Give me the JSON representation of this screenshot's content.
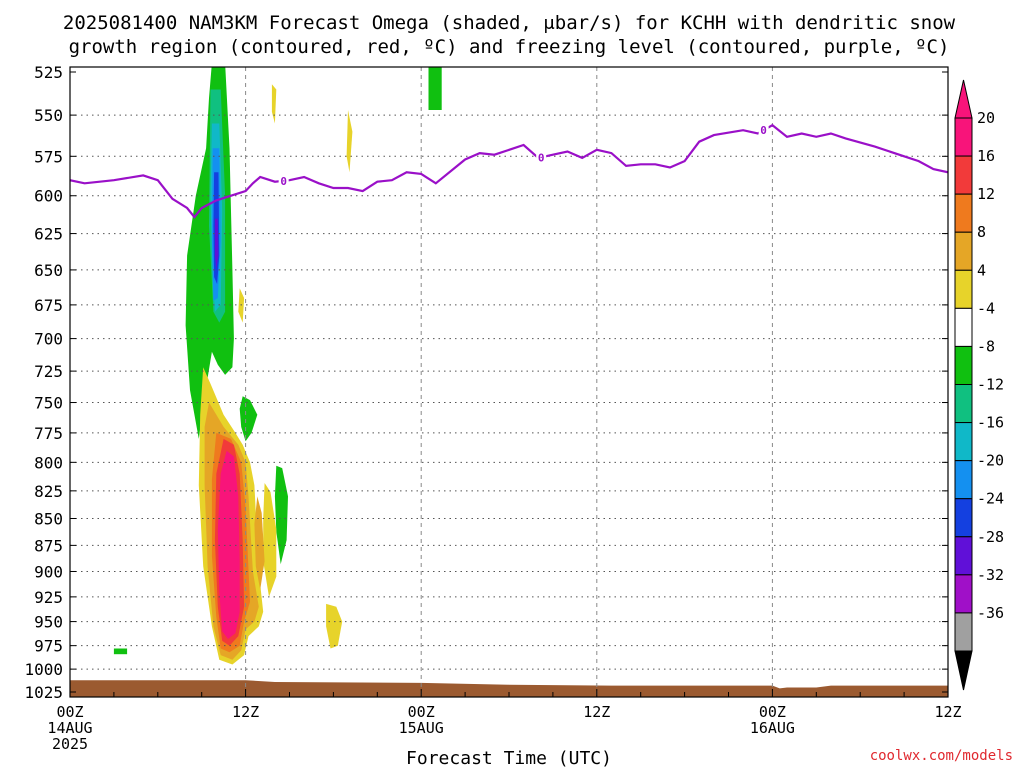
{
  "chart_data": {
    "type": "heatmap",
    "title": "2025081400 NAM3KM Forecast Omega (shaded, μbar/s) for KCHH with dendritic snow",
    "subtitle": "growth region (contoured, red, ºC) and freezing level (contoured, purple, ºC)",
    "xlabel": "Forecast Time (UTC)",
    "credit": "coolwx.com/models",
    "x_unit": "forecast hour",
    "xlim": [
      0,
      60
    ],
    "y_unit": "hPa",
    "ylim": [
      1025,
      525
    ],
    "y_ticks": [
      525,
      550,
      575,
      600,
      625,
      650,
      675,
      700,
      725,
      750,
      775,
      800,
      825,
      850,
      875,
      900,
      925,
      950,
      975,
      1000,
      1025
    ],
    "x_ticks": [
      {
        "hour": 0,
        "lines": [
          "00Z",
          "14AUG",
          "2025"
        ]
      },
      {
        "hour": 12,
        "lines": [
          "12Z"
        ]
      },
      {
        "hour": 24,
        "lines": [
          "00Z",
          "15AUG"
        ]
      },
      {
        "hour": 36,
        "lines": [
          "12Z"
        ]
      },
      {
        "hour": 48,
        "lines": [
          "00Z",
          "16AUG"
        ]
      },
      {
        "hour": 60,
        "lines": [
          "12Z"
        ]
      }
    ],
    "colorbar": {
      "tick_labels": [
        "20",
        "16",
        "12",
        "8",
        "4",
        "-4",
        "-8",
        "-12",
        "-16",
        "-20",
        "-24",
        "-28",
        "-32",
        "-36"
      ],
      "colors_top_to_bottom": [
        "#f8147a",
        "#f23a3a",
        "#ef7a1e",
        "#e5a626",
        "#e7d32a",
        "#ffffff",
        "#10c010",
        "#10c080",
        "#10b8c8",
        "#1490f0",
        "#1440e0",
        "#6010d8",
        "#a010c8",
        "#a0a0a0"
      ],
      "extend_max_color": "#f8147a",
      "extend_min_color": "#000000"
    },
    "freezing_level": {
      "color": "#9a10c8",
      "label": "0",
      "points": [
        [
          0,
          590
        ],
        [
          1,
          592
        ],
        [
          3,
          590
        ],
        [
          5,
          587
        ],
        [
          6,
          590
        ],
        [
          7,
          602
        ],
        [
          8,
          608
        ],
        [
          8.5,
          614
        ],
        [
          9,
          608
        ],
        [
          10,
          603
        ],
        [
          11,
          600
        ],
        [
          12,
          597
        ],
        [
          12.5,
          592
        ],
        [
          13,
          588
        ],
        [
          14,
          591
        ],
        [
          15,
          590
        ],
        [
          16,
          588
        ],
        [
          17,
          592
        ],
        [
          18,
          595
        ],
        [
          19,
          595
        ],
        [
          20,
          597
        ],
        [
          21,
          591
        ],
        [
          22,
          590
        ],
        [
          23,
          585
        ],
        [
          24,
          586
        ],
        [
          25,
          592
        ],
        [
          27,
          577
        ],
        [
          28,
          573
        ],
        [
          29,
          574
        ],
        [
          31,
          568
        ],
        [
          32,
          576
        ],
        [
          33,
          574
        ],
        [
          34,
          572
        ],
        [
          35,
          576
        ],
        [
          36,
          571
        ],
        [
          37,
          573
        ],
        [
          38,
          581
        ],
        [
          39,
          580
        ],
        [
          40,
          580
        ],
        [
          41,
          582
        ],
        [
          42,
          578
        ],
        [
          43,
          566
        ],
        [
          44,
          562
        ],
        [
          46,
          559
        ],
        [
          47,
          561
        ],
        [
          48,
          556
        ],
        [
          49,
          563
        ],
        [
          50,
          561
        ],
        [
          51,
          563
        ],
        [
          52,
          561
        ],
        [
          53,
          564
        ],
        [
          55,
          569
        ],
        [
          57,
          575
        ],
        [
          58,
          578
        ],
        [
          59,
          583
        ],
        [
          60,
          585
        ]
      ],
      "label_at_hours": [
        14.6,
        32.2,
        47.4
      ]
    },
    "ground_color": "#9b5a30",
    "shaded_regions": [
      {
        "level": "-4",
        "color": "#10c010",
        "points": [
          [
            9.7,
            520
          ],
          [
            10.6,
            520
          ],
          [
            10.9,
            570
          ],
          [
            11.1,
            650
          ],
          [
            11.2,
            700
          ],
          [
            11.1,
            722
          ],
          [
            10.6,
            728
          ],
          [
            10.1,
            720
          ],
          [
            9.7,
            710
          ],
          [
            9.2,
            745
          ],
          [
            8.8,
            780
          ],
          [
            8.2,
            740
          ],
          [
            7.9,
            690
          ],
          [
            8.0,
            640
          ],
          [
            8.6,
            600
          ],
          [
            9.3,
            570
          ],
          [
            9.5,
            540
          ]
        ]
      },
      {
        "level": "-4",
        "color": "#10c010",
        "points": [
          [
            24.5,
            520
          ],
          [
            25.4,
            520
          ],
          [
            25.4,
            547
          ],
          [
            24.5,
            547
          ]
        ]
      },
      {
        "level": "-4",
        "color": "#10c010",
        "points": [
          [
            11.8,
            745
          ],
          [
            12.3,
            748
          ],
          [
            12.8,
            760
          ],
          [
            12.4,
            775
          ],
          [
            12.0,
            782
          ],
          [
            11.7,
            770
          ],
          [
            11.6,
            755
          ]
        ]
      },
      {
        "level": "-4",
        "color": "#10c010",
        "points": [
          [
            14.1,
            803
          ],
          [
            14.5,
            805
          ],
          [
            14.9,
            830
          ],
          [
            14.8,
            870
          ],
          [
            14.4,
            893
          ],
          [
            14.1,
            862
          ],
          [
            14.0,
            830
          ]
        ]
      },
      {
        "level": "-4",
        "color": "#10c010",
        "points": [
          [
            3.0,
            978
          ],
          [
            3.9,
            978
          ],
          [
            3.9,
            984
          ],
          [
            3.0,
            984
          ]
        ]
      },
      {
        "level": "-8",
        "color": "#10c080",
        "points": [
          [
            9.6,
            535
          ],
          [
            10.3,
            535
          ],
          [
            10.6,
            600
          ],
          [
            10.6,
            680
          ],
          [
            10.2,
            688
          ],
          [
            9.8,
            680
          ],
          [
            9.5,
            620
          ]
        ]
      },
      {
        "level": "-12",
        "color": "#10b8c8",
        "points": [
          [
            9.7,
            555
          ],
          [
            10.2,
            555
          ],
          [
            10.4,
            610
          ],
          [
            10.3,
            675
          ],
          [
            9.9,
            680
          ],
          [
            9.7,
            640
          ],
          [
            9.6,
            600
          ]
        ]
      },
      {
        "level": "-16",
        "color": "#1490f0",
        "points": [
          [
            9.75,
            570
          ],
          [
            10.2,
            570
          ],
          [
            10.3,
            630
          ],
          [
            10.1,
            670
          ],
          [
            9.8,
            672
          ],
          [
            9.7,
            630
          ]
        ]
      },
      {
        "level": "-20",
        "color": "#1440e0",
        "points": [
          [
            9.85,
            585
          ],
          [
            10.15,
            585
          ],
          [
            10.2,
            640
          ],
          [
            10.05,
            660
          ],
          [
            9.85,
            655
          ],
          [
            9.8,
            620
          ]
        ]
      },
      {
        "level": "-24",
        "color": "#6010d8",
        "points": [
          [
            9.9,
            615
          ],
          [
            10.1,
            615
          ],
          [
            10.15,
            640
          ],
          [
            10.0,
            650
          ],
          [
            9.9,
            640
          ]
        ]
      },
      {
        "level": "4",
        "color": "#e7d32a",
        "points": [
          [
            9.1,
            722
          ],
          [
            9.6,
            735
          ],
          [
            10.5,
            760
          ],
          [
            11.3,
            775
          ],
          [
            11.8,
            785
          ],
          [
            12.3,
            800
          ],
          [
            12.6,
            820
          ],
          [
            12.9,
            900
          ],
          [
            13.2,
            940
          ],
          [
            12.9,
            955
          ],
          [
            12.2,
            965
          ],
          [
            11.9,
            985
          ],
          [
            11.1,
            995
          ],
          [
            10.2,
            990
          ],
          [
            9.7,
            955
          ],
          [
            9.1,
            895
          ],
          [
            8.8,
            820
          ],
          [
            8.9,
            760
          ]
        ]
      },
      {
        "level": "4",
        "color": "#e7d32a",
        "points": [
          [
            13.3,
            818
          ],
          [
            13.7,
            826
          ],
          [
            14.1,
            860
          ],
          [
            14.1,
            905
          ],
          [
            13.6,
            925
          ],
          [
            13.2,
            890
          ],
          [
            13.2,
            850
          ]
        ]
      },
      {
        "level": "4",
        "color": "#e7d32a",
        "points": [
          [
            17.5,
            932
          ],
          [
            18.2,
            935
          ],
          [
            18.6,
            950
          ],
          [
            18.3,
            975
          ],
          [
            17.8,
            978
          ],
          [
            17.5,
            955
          ]
        ]
      },
      {
        "level": "4",
        "color": "#e7d32a",
        "points": [
          [
            11.6,
            663
          ],
          [
            11.9,
            670
          ],
          [
            11.8,
            688
          ],
          [
            11.5,
            680
          ]
        ]
      },
      {
        "level": "4",
        "color": "#e7d32a",
        "points": [
          [
            13.8,
            532
          ],
          [
            14.1,
            535
          ],
          [
            14.0,
            555
          ],
          [
            13.8,
            548
          ]
        ]
      },
      {
        "level": "4",
        "color": "#e7d32a",
        "points": [
          [
            19.0,
            547
          ],
          [
            19.3,
            560
          ],
          [
            19.1,
            585
          ],
          [
            18.9,
            575
          ]
        ]
      },
      {
        "level": "8",
        "color": "#e5a626",
        "points": [
          [
            9.5,
            750
          ],
          [
            10.5,
            770
          ],
          [
            11.5,
            785
          ],
          [
            12.0,
            800
          ],
          [
            12.2,
            830
          ],
          [
            12.5,
            900
          ],
          [
            12.9,
            935
          ],
          [
            12.6,
            950
          ],
          [
            12.0,
            958
          ],
          [
            11.7,
            980
          ],
          [
            11.1,
            990
          ],
          [
            10.3,
            985
          ],
          [
            9.8,
            955
          ],
          [
            9.4,
            895
          ],
          [
            9.2,
            820
          ],
          [
            9.2,
            770
          ]
        ]
      },
      {
        "level": "8",
        "color": "#e5a626",
        "points": [
          [
            12.8,
            830
          ],
          [
            13.1,
            845
          ],
          [
            13.3,
            890
          ],
          [
            13.0,
            918
          ],
          [
            12.7,
            895
          ],
          [
            12.6,
            855
          ]
        ]
      },
      {
        "level": "12",
        "color": "#ef7a1e",
        "points": [
          [
            10.0,
            775
          ],
          [
            11.0,
            780
          ],
          [
            11.7,
            800
          ],
          [
            12.0,
            840
          ],
          [
            12.3,
            930
          ],
          [
            11.9,
            950
          ],
          [
            11.6,
            975
          ],
          [
            10.9,
            982
          ],
          [
            10.3,
            978
          ],
          [
            10.0,
            945
          ],
          [
            9.7,
            885
          ],
          [
            9.7,
            815
          ]
        ]
      },
      {
        "level": "16",
        "color": "#f23a3a",
        "points": [
          [
            10.5,
            780
          ],
          [
            11.2,
            785
          ],
          [
            11.6,
            810
          ],
          [
            11.8,
            870
          ],
          [
            11.9,
            935
          ],
          [
            11.5,
            965
          ],
          [
            10.9,
            975
          ],
          [
            10.4,
            970
          ],
          [
            10.1,
            935
          ],
          [
            9.9,
            870
          ],
          [
            10.0,
            810
          ]
        ]
      },
      {
        "level": "20",
        "color": "#f8147a",
        "points": [
          [
            10.7,
            790
          ],
          [
            11.2,
            795
          ],
          [
            11.5,
            830
          ],
          [
            11.6,
            890
          ],
          [
            11.6,
            940
          ],
          [
            11.3,
            962
          ],
          [
            10.8,
            968
          ],
          [
            10.4,
            960
          ],
          [
            10.2,
            920
          ],
          [
            10.1,
            860
          ],
          [
            10.3,
            810
          ]
        ]
      }
    ]
  }
}
